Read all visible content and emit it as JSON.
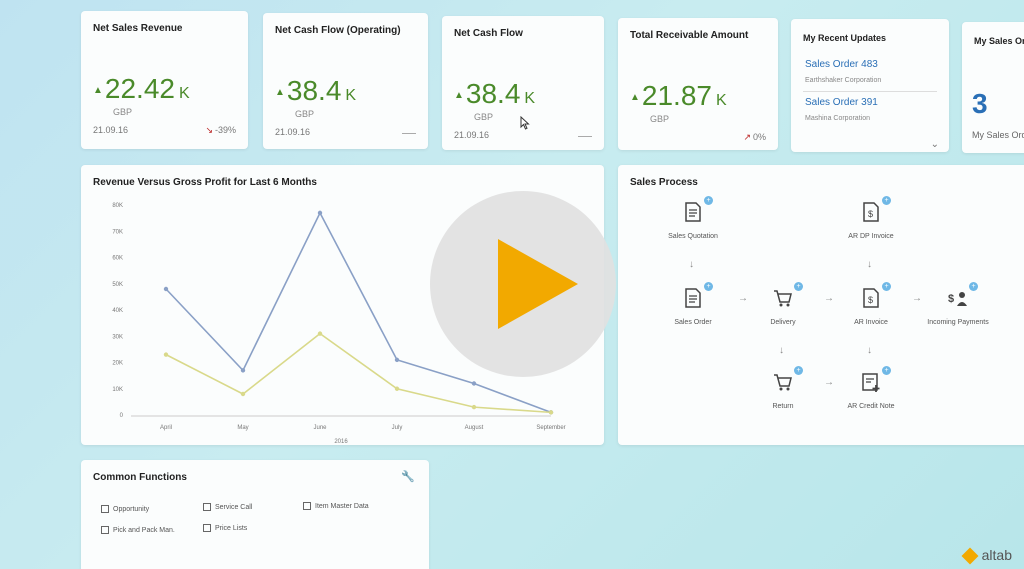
{
  "kpis": [
    {
      "title": "Net Sales Revenue",
      "value": "22.42",
      "unit": "K",
      "currency": "GBP",
      "date": "21.09.16",
      "trend": "-39%",
      "trend_dir": "down"
    },
    {
      "title": "Net Cash Flow (Operating)",
      "value": "38.4",
      "unit": "K",
      "currency": "GBP",
      "date": "21.09.16",
      "trend": "",
      "trend_dir": "none"
    },
    {
      "title": "Net Cash Flow",
      "value": "38.4",
      "unit": "K",
      "currency": "GBP",
      "date": "21.09.16",
      "trend": "",
      "trend_dir": "none"
    },
    {
      "title": "Total Receivable Amount",
      "value": "21.87",
      "unit": "K",
      "currency": "GBP",
      "date": "",
      "trend": "0%",
      "trend_dir": "up"
    }
  ],
  "recent_updates": {
    "title": "My Recent Updates",
    "items": [
      {
        "link": "Sales Order 483",
        "sub": "Earthshaker Corporation"
      },
      {
        "link": "Sales Order 391",
        "sub": "Mashina Corporation"
      }
    ]
  },
  "my_sales": {
    "title": "My Sales Ord",
    "value": "3",
    "label": "My Sales Ord"
  },
  "chart": {
    "title": "Revenue Versus Gross Profit for Last 6 Months",
    "xlabel": "2016"
  },
  "chart_data": {
    "type": "line",
    "title": "Revenue Versus Gross Profit for Last 6 Months",
    "xlabel": "2016",
    "ylabel": "",
    "categories": [
      "April",
      "May",
      "June",
      "July",
      "August",
      "September"
    ],
    "yticks": [
      "0",
      "10K",
      "20K",
      "30K",
      "40K",
      "50K",
      "60K",
      "70K",
      "80K"
    ],
    "ylim": [
      0,
      80000
    ],
    "series": [
      {
        "values": [
          48000,
          17000,
          77000,
          21000,
          12000,
          1000
        ],
        "color": "#8aa0c6"
      },
      {
        "values": [
          23000,
          8000,
          31000,
          10000,
          3000,
          1000
        ],
        "color": "#d9d98a"
      }
    ],
    "grid": false,
    "legend": "none"
  },
  "sales_process": {
    "title": "Sales Process",
    "nodes": {
      "quotation": "Sales Quotation",
      "dp_invoice": "AR DP Invoice",
      "order": "Sales Order",
      "delivery": "Delivery",
      "invoice": "AR Invoice",
      "payments": "Incoming Payments",
      "returns": "Return",
      "credit_note": "AR Credit Note"
    }
  },
  "common_functions": {
    "title": "Common Functions",
    "items": [
      "Opportunity",
      "Service Call",
      "Item Master Data",
      "Pick and Pack Man.",
      "Price Lists"
    ]
  },
  "brand": {
    "name": "altab",
    "accent": "#f2a900",
    "positive": "#4a8a2a",
    "link": "#2a6fb6"
  }
}
